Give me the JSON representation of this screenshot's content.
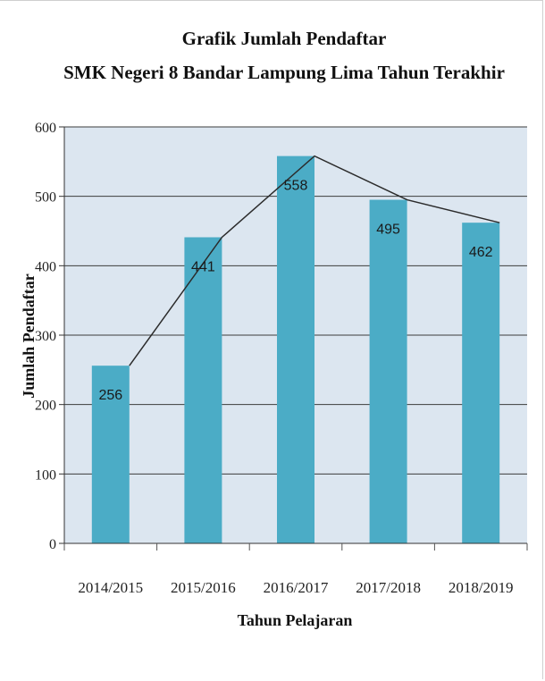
{
  "chart_data": {
    "type": "bar",
    "title": "Grafik Jumlah Pendaftar",
    "subtitle": "SMK Negeri 8 Bandar Lampung Lima Tahun Terakhir",
    "xlabel": "Tahun Pelajaran",
    "ylabel": "Jumlah Pendaftar",
    "categories": [
      "2014/2015",
      "2015/2016",
      "2016/2017",
      "2017/2018",
      "2018/2019"
    ],
    "values": [
      256,
      441,
      558,
      495,
      462
    ],
    "data_labels": [
      "256",
      "441",
      "558",
      "495",
      "462"
    ],
    "ylim": [
      0,
      600
    ],
    "yticks": [
      0,
      100,
      200,
      300,
      400,
      500,
      600
    ],
    "ytick_labels": [
      "0",
      "100",
      "200",
      "300",
      "400",
      "500",
      "600"
    ],
    "grid": true,
    "overlay_line": true,
    "colors": {
      "bar": "#4bacc6",
      "plot_background": "#dce6f0",
      "gridline": "#3c3c3c",
      "line": "#2b2b2b"
    }
  }
}
